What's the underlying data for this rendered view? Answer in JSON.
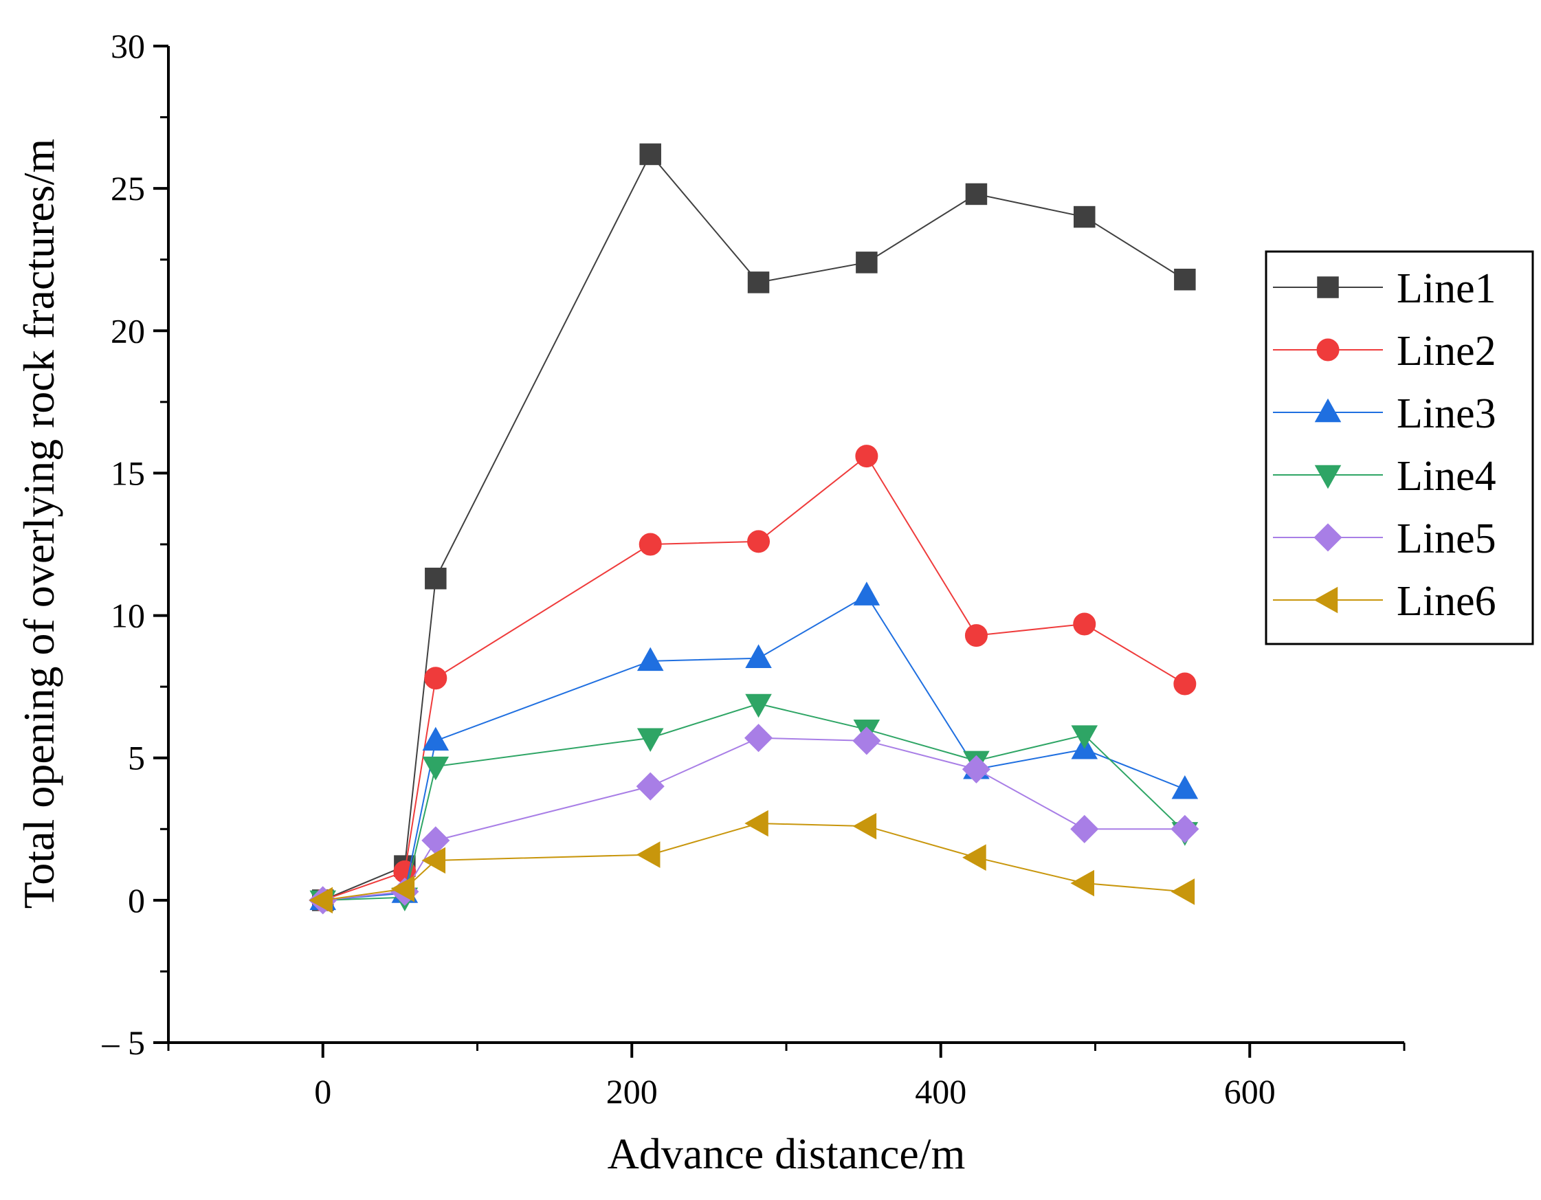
{
  "chart_data": {
    "type": "line",
    "title": "",
    "xlabel": "Advance distance/m",
    "ylabel": "Total opening of overlying rock fractures/m",
    "xlim": [
      -100,
      700
    ],
    "ylim": [
      -5,
      30
    ],
    "xticks": [
      0,
      200,
      400,
      600
    ],
    "xtick_labels": [
      "0",
      "200",
      "400",
      "600"
    ],
    "yticks": [
      -5,
      0,
      5,
      10,
      15,
      20,
      25,
      30
    ],
    "ytick_labels": [
      "– 5",
      "0",
      "5",
      "10",
      "15",
      "20",
      "25",
      "30"
    ],
    "grid": false,
    "legend_position": "right",
    "x": [
      0,
      53,
      73,
      212,
      282,
      352,
      423,
      493,
      558
    ],
    "series": [
      {
        "name": "Line1",
        "color": "#404040",
        "marker": "square",
        "values": [
          0,
          1.2,
          11.3,
          26.2,
          21.7,
          22.4,
          24.8,
          24.0,
          21.8
        ]
      },
      {
        "name": "Line2",
        "color": "#ef3b3b",
        "marker": "circle",
        "values": [
          0,
          1.0,
          7.8,
          12.5,
          12.6,
          15.6,
          9.3,
          9.7,
          7.6
        ]
      },
      {
        "name": "Line3",
        "color": "#1f6fe0",
        "marker": "triangle-up",
        "values": [
          0,
          0.25,
          5.6,
          8.4,
          8.5,
          10.7,
          4.6,
          5.3,
          3.9
        ]
      },
      {
        "name": "Line4",
        "color": "#2ea565",
        "marker": "triangle-down",
        "values": [
          0,
          0.1,
          4.7,
          5.7,
          6.9,
          6.0,
          4.9,
          5.8,
          2.4
        ]
      },
      {
        "name": "Line5",
        "color": "#a87ee6",
        "marker": "diamond",
        "values": [
          0,
          0.3,
          2.1,
          4.0,
          5.7,
          5.6,
          4.6,
          2.5,
          2.5
        ]
      },
      {
        "name": "Line6",
        "color": "#c8960c",
        "marker": "triangle-left",
        "values": [
          0,
          0.4,
          1.4,
          1.6,
          2.7,
          2.6,
          1.5,
          0.6,
          0.3
        ]
      }
    ]
  }
}
